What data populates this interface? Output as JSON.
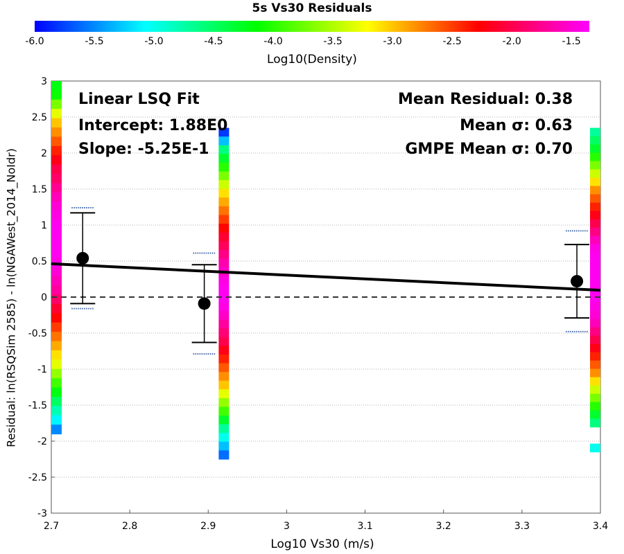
{
  "colorbar": {
    "title": "5s Vs30 Residuals",
    "label": "Log10(Density)",
    "ticks": [
      "-6.0",
      "-5.5",
      "-5.0",
      "-4.5",
      "-4.0",
      "-3.5",
      "-3.0",
      "-2.5",
      "-2.0",
      "-1.5"
    ],
    "min": -6.0,
    "max": -1.35,
    "gradient": [
      "#0000ff",
      "#00ffff",
      "#00ff00",
      "#ffff00",
      "#ff0000",
      "#ff00ff"
    ]
  },
  "annotations": {
    "fit_title": "Linear LSQ Fit",
    "intercept": "Intercept: 1.88E0",
    "slope": "Slope: -5.25E-1",
    "mean_residual": "Mean Residual: 0.38",
    "mean_sigma": "Mean σ: 0.63",
    "gmpe_sigma": "GMPE Mean σ: 0.70"
  },
  "chart_data": {
    "type": "scatter",
    "xlabel": "Log10 Vs30 (m/s)",
    "ylabel": "Residual: ln(RSQSim 2585) - ln(NGAWest_2014_NoIdr)",
    "xlim": [
      2.7,
      3.4
    ],
    "ylim": [
      -3,
      3
    ],
    "xticks": [
      "2.7",
      "2.8",
      "2.9",
      "3",
      "3.1",
      "3.2",
      "3.3",
      "3.4"
    ],
    "yticks": [
      "3",
      "2.5",
      "2",
      "1.5",
      "1",
      "0.5",
      "0",
      "-0.5",
      "-1",
      "-1.5",
      "-2",
      "-2.5",
      "-3"
    ],
    "grid": "horizontal dotted",
    "fit_line": {
      "intercept": 1.88,
      "slope": -0.525
    },
    "zero_line": 0,
    "points": [
      {
        "x": 2.74,
        "y": 0.54,
        "err_lo": -0.09,
        "err_hi": 1.17,
        "gmpe_lo": -0.16,
        "gmpe_hi": 1.24
      },
      {
        "x": 2.895,
        "y": -0.09,
        "err_lo": -0.63,
        "err_hi": 0.45,
        "gmpe_lo": -0.79,
        "gmpe_hi": 0.61
      },
      {
        "x": 3.37,
        "y": 0.22,
        "err_lo": -0.29,
        "err_hi": 0.73,
        "gmpe_lo": -0.48,
        "gmpe_hi": 0.92
      }
    ],
    "density_strips": [
      {
        "x": 2.7,
        "y_top": 3.0,
        "y_bottom": -1.9,
        "cells": [
          -4.2,
          -4.1,
          -3.7,
          -3.3,
          -3.0,
          -2.8,
          -2.6,
          -2.4,
          -2.2,
          -2.0,
          -1.9,
          -1.75,
          -1.6,
          -1.5,
          -1.45,
          -1.4,
          -1.4,
          -1.4,
          -1.4,
          -1.45,
          -1.5,
          -1.6,
          -1.7,
          -1.9,
          -2.1,
          -2.3,
          -2.5,
          -2.7,
          -2.9,
          -3.1,
          -3.3,
          -3.6,
          -3.9,
          -4.2,
          -4.5,
          -4.8,
          -5.1,
          -5.5
        ]
      },
      {
        "x": 2.92,
        "y_top": 2.35,
        "y_bottom": -2.25,
        "cells": [
          -5.8,
          -5.3,
          -4.6,
          -4.3,
          -4.0,
          -3.7,
          -3.4,
          -3.1,
          -2.9,
          -2.7,
          -2.5,
          -2.3,
          -2.1,
          -1.95,
          -1.8,
          -1.65,
          -1.55,
          -1.45,
          -1.4,
          -1.4,
          -1.45,
          -1.55,
          -1.7,
          -1.85,
          -2.0,
          -2.2,
          -2.4,
          -2.6,
          -2.8,
          -3.0,
          -3.3,
          -3.6,
          -3.9,
          -4.3,
          -4.7,
          -5.0,
          -5.3,
          -5.6
        ]
      },
      {
        "x": 3.4,
        "y_top": 2.35,
        "y_bottom": -2.15,
        "cells": [
          -4.7,
          -4.5,
          -4.3,
          -4.0,
          -3.7,
          -3.4,
          -3.1,
          -2.8,
          -2.6,
          -2.4,
          -2.2,
          -2.0,
          -1.8,
          -1.6,
          -1.45,
          -1.4,
          -1.4,
          -1.4,
          -1.4,
          -1.4,
          -1.4,
          -1.45,
          -1.5,
          -1.6,
          -1.8,
          -2.0,
          -2.2,
          -2.4,
          -2.6,
          -2.8,
          -3.1,
          -3.4,
          -3.7,
          -4.0,
          -4.3,
          -4.6,
          null,
          null,
          -5.0
        ]
      }
    ]
  }
}
